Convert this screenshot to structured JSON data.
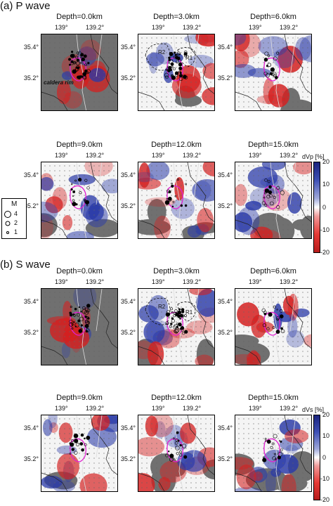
{
  "sections": [
    {
      "id": "p",
      "title": "(a) P wave",
      "colorbar": {
        "label": "dVp [%]",
        "ticks": [
          "20",
          "10",
          "0",
          "-10",
          "-20"
        ]
      },
      "panels": [
        {
          "depth": "Depth=0.0km",
          "pattern": 0
        },
        {
          "depth": "Depth=3.0km",
          "pattern": 1
        },
        {
          "depth": "Depth=6.0km",
          "pattern": 2
        },
        {
          "depth": "Depth=9.0km",
          "pattern": 3
        },
        {
          "depth": "Depth=12.0km",
          "pattern": 4
        },
        {
          "depth": "Depth=15.0km",
          "pattern": 5
        }
      ]
    },
    {
      "id": "s",
      "title": "(b) S wave",
      "colorbar": {
        "label": "dVs [%]",
        "ticks": [
          "20",
          "10",
          "0",
          "-10",
          "-20"
        ]
      },
      "panels": [
        {
          "depth": "Depth=0.0km",
          "pattern": 6
        },
        {
          "depth": "Depth=3.0km",
          "pattern": 7
        },
        {
          "depth": "Depth=6.0km",
          "pattern": 8
        },
        {
          "depth": "Depth=9.0km",
          "pattern": 9
        },
        {
          "depth": "Depth=12.0km",
          "pattern": 10
        },
        {
          "depth": "Depth=15.0km",
          "pattern": 11
        }
      ]
    }
  ],
  "axes": {
    "x_ticks": [
      "139°",
      "139.2°"
    ],
    "y_ticks": [
      "35.4°",
      "35.2°"
    ]
  },
  "annotations": {
    "caldera_rim": "caldera rim",
    "r1": "R1",
    "r2": "R2"
  },
  "legend": {
    "title": "M",
    "items": [
      "4",
      "2",
      "1"
    ]
  },
  "colors": {
    "red": "#d42020",
    "blue": "#2a3aa8",
    "gray": "#707070",
    "magenta": "#e020d0"
  }
}
